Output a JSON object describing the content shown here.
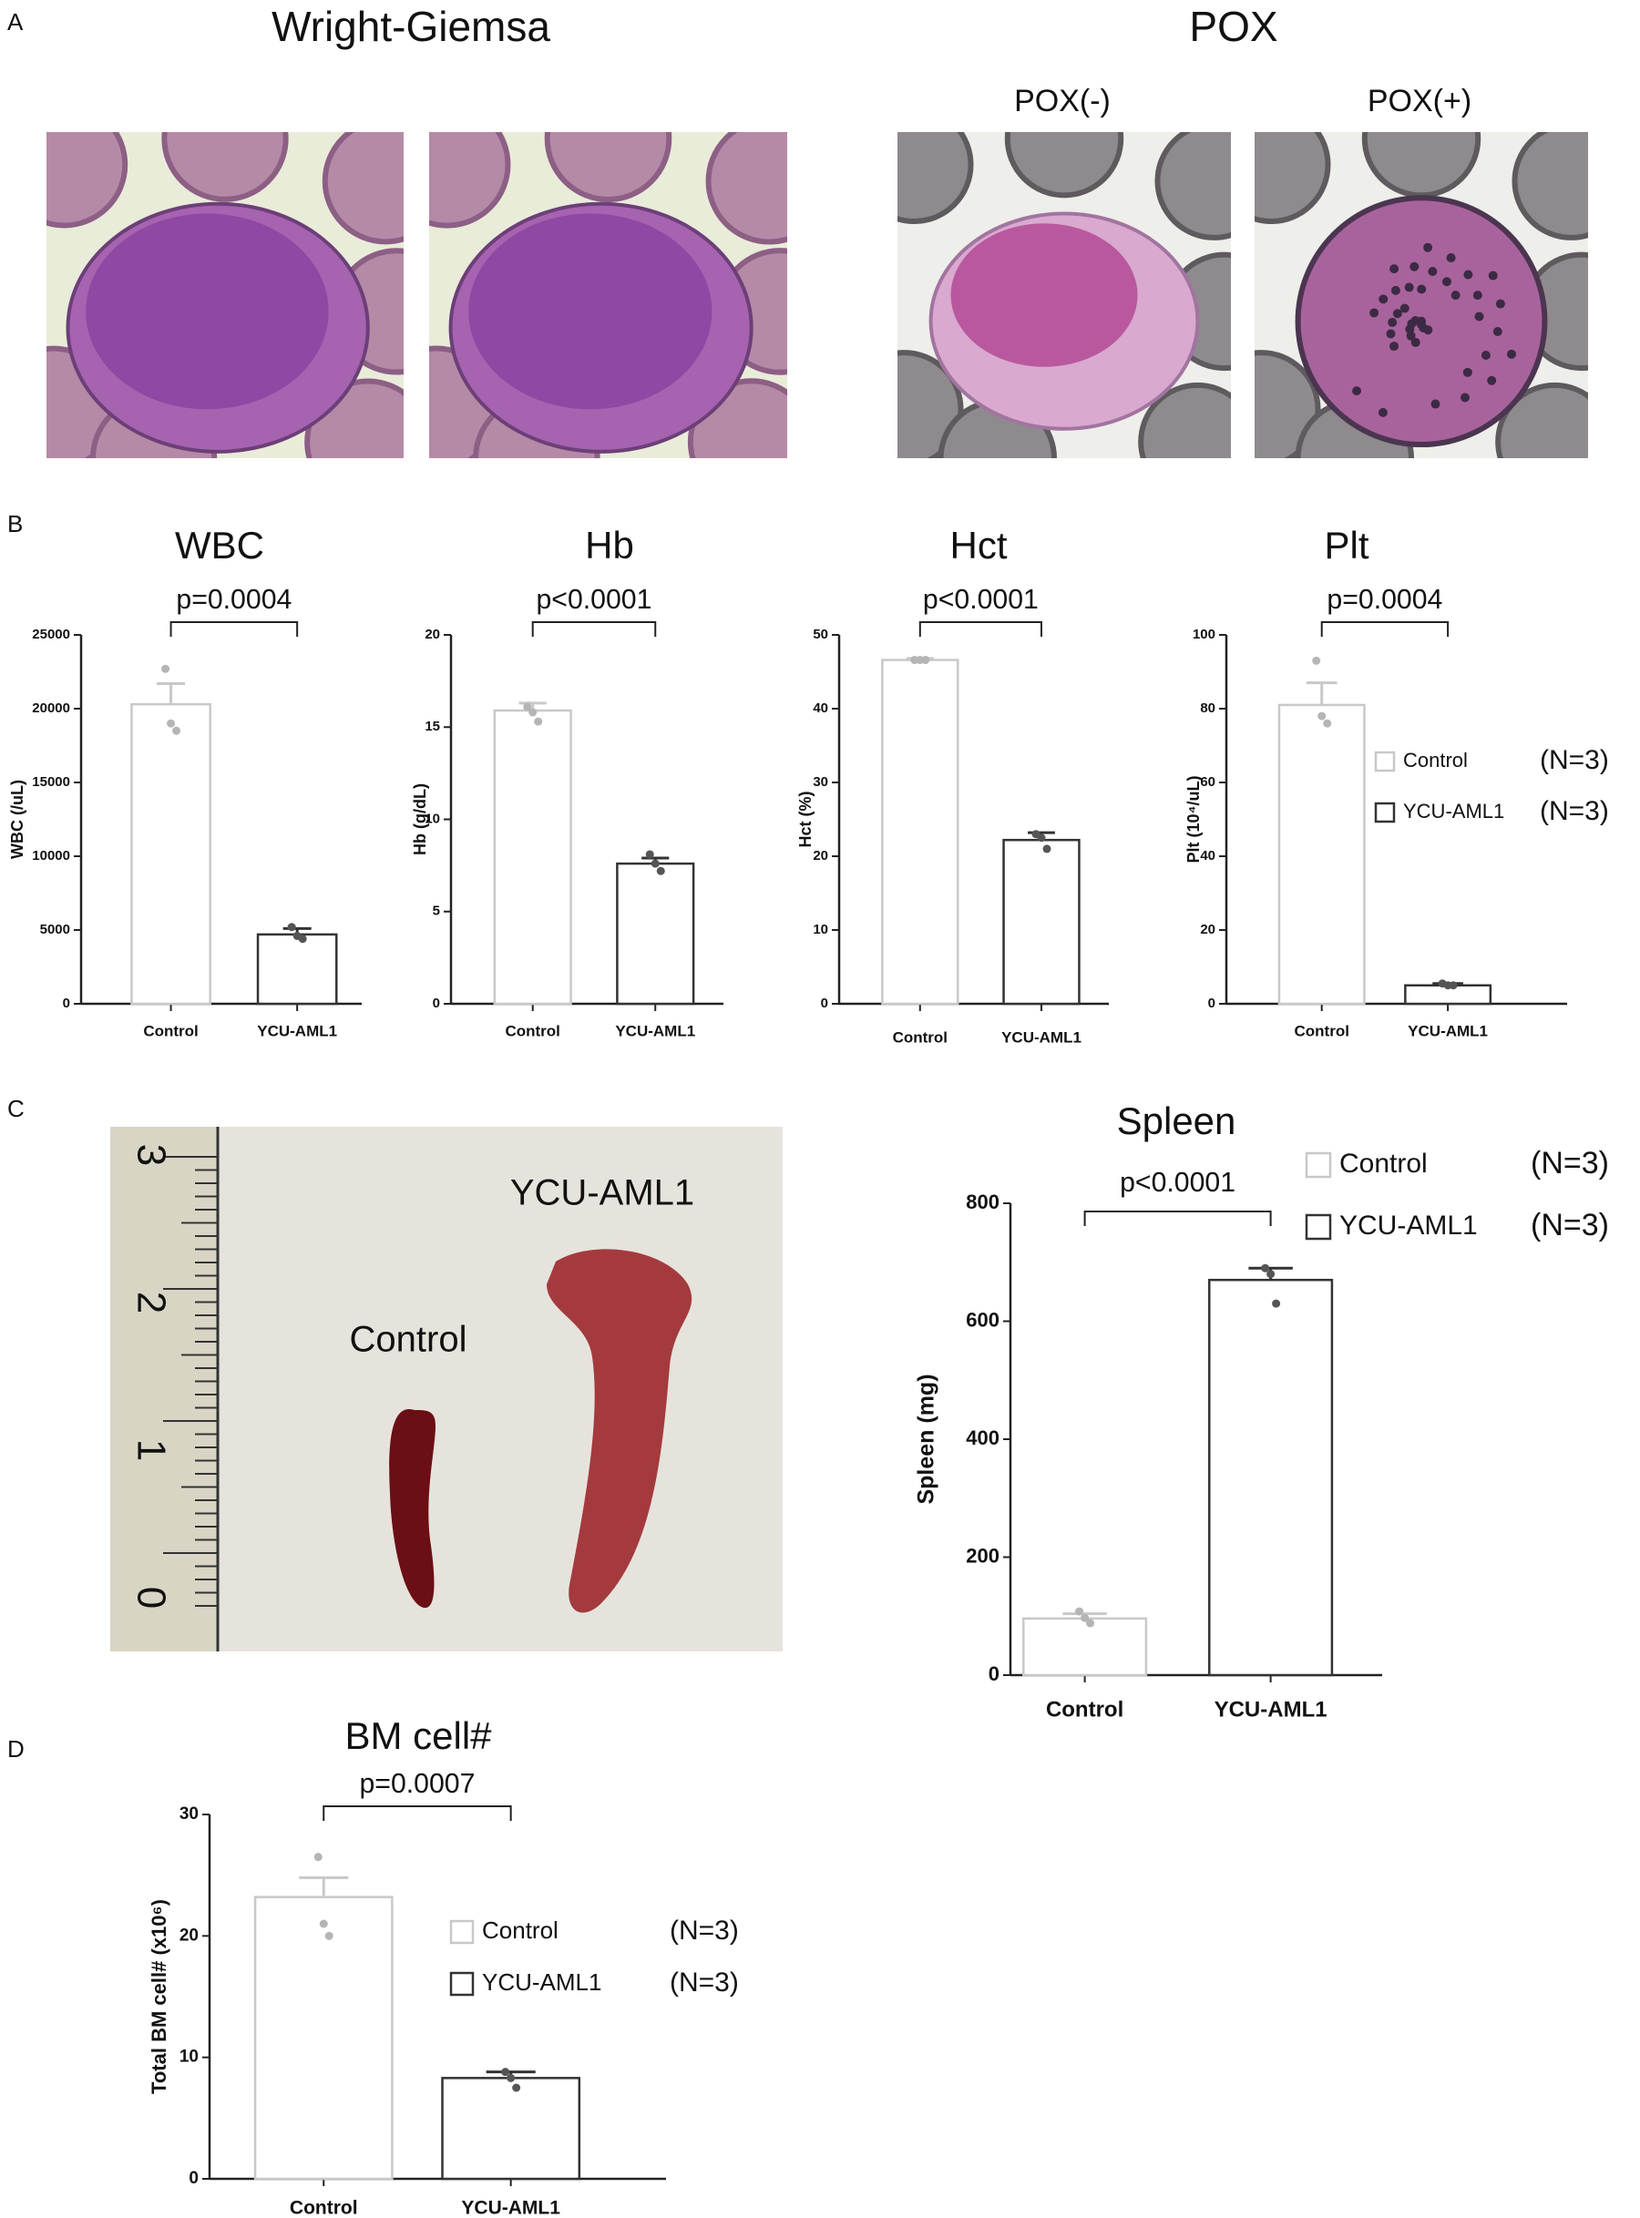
{
  "panels": {
    "a": {
      "label": "A",
      "groups": [
        {
          "title": "Wright-Giemsa"
        },
        {
          "title": "POX",
          "subtitles": [
            "POX(-)",
            "POX(+)"
          ]
        }
      ]
    },
    "b": {
      "label": "B"
    },
    "c": {
      "label": "C",
      "photo": {
        "labels": [
          "YCU-AML1",
          "Control"
        ],
        "ruler": [
          "3",
          "2",
          "1",
          "0"
        ]
      }
    },
    "d": {
      "label": "D"
    }
  },
  "chart_data": [
    {
      "type": "bar",
      "title": "WBC",
      "ylabel": "WBC (/uL)",
      "categories": [
        "Control",
        "YCU-AML1"
      ],
      "values": [
        20300,
        4700
      ],
      "errors": [
        1400,
        400
      ],
      "points": [
        [
          22700,
          19000,
          18500
        ],
        [
          5200,
          4600,
          4400
        ]
      ],
      "colors": [
        "#c8c8c8",
        "#333333"
      ],
      "ylim": [
        0,
        25000
      ],
      "yticks": [
        0,
        5000,
        10000,
        15000,
        20000,
        25000
      ],
      "annotation": "p=0.0004"
    },
    {
      "type": "bar",
      "title": "Hb",
      "ylabel": "Hb (g/dL)",
      "categories": [
        "Control",
        "YCU-AML1"
      ],
      "values": [
        15.9,
        7.6
      ],
      "errors": [
        0.4,
        0.3
      ],
      "points": [
        [
          16.1,
          15.8,
          15.3
        ],
        [
          8.1,
          7.6,
          7.2
        ]
      ],
      "colors": [
        "#c8c8c8",
        "#333333"
      ],
      "ylim": [
        0,
        20
      ],
      "yticks": [
        0,
        5,
        10,
        15,
        20
      ],
      "annotation": "p<0.0001"
    },
    {
      "type": "bar",
      "title": "Hct",
      "ylabel": "Hct (%)",
      "categories": [
        "Control",
        "YCU-AML1"
      ],
      "values": [
        46.6,
        22.2
      ],
      "errors": [
        0.2,
        1.0
      ],
      "points": [
        [
          46.6,
          46.6,
          46.6
        ],
        [
          23,
          22.5,
          21
        ]
      ],
      "colors": [
        "#c8c8c8",
        "#333333"
      ],
      "ylim": [
        0,
        50
      ],
      "yticks": [
        0,
        10,
        20,
        30,
        40,
        50
      ],
      "annotation": "p<0.0001"
    },
    {
      "type": "bar",
      "title": "Plt",
      "ylabel": "Plt (10⁴/uL)",
      "categories": [
        "Control",
        "YCU-AML1"
      ],
      "values": [
        81,
        5
      ],
      "errors": [
        6,
        0.5
      ],
      "points": [
        [
          93,
          78,
          76
        ],
        [
          5.5,
          5,
          5
        ]
      ],
      "colors": [
        "#c8c8c8",
        "#333333"
      ],
      "ylim": [
        0,
        100
      ],
      "yticks": [
        0,
        20,
        40,
        60,
        80,
        100
      ],
      "annotation": "p=0.0004",
      "legend": {
        "entries": [
          {
            "label": "Control",
            "note": "(N=3)"
          },
          {
            "label": "YCU-AML1",
            "note": "(N=3)"
          }
        ]
      }
    },
    {
      "type": "bar",
      "title": "Spleen",
      "ylabel": "Spleen (mg)",
      "categories": [
        "Control",
        "YCU-AML1"
      ],
      "values": [
        96,
        670
      ],
      "errors": [
        8,
        20
      ],
      "points": [
        [
          108,
          97,
          88
        ],
        [
          690,
          680,
          630
        ]
      ],
      "colors": [
        "#c8c8c8",
        "#333333"
      ],
      "ylim": [
        0,
        800
      ],
      "yticks": [
        0,
        200,
        400,
        600,
        800
      ],
      "annotation": "p<0.0001",
      "legend": {
        "entries": [
          {
            "label": "Control",
            "note": "(N=3)"
          },
          {
            "label": "YCU-AML1",
            "note": "(N=3)"
          }
        ]
      }
    },
    {
      "type": "bar",
      "title": "BM cell#",
      "ylabel": "Total BM cell# (x10⁶)",
      "categories": [
        "Control",
        "YCU-AML1"
      ],
      "values": [
        23.2,
        8.3
      ],
      "errors": [
        1.6,
        0.5
      ],
      "points": [
        [
          26.5,
          21,
          20
        ],
        [
          8.8,
          8.3,
          7.5
        ]
      ],
      "colors": [
        "#c8c8c8",
        "#333333"
      ],
      "ylim": [
        0,
        30
      ],
      "yticks": [
        0,
        10,
        20,
        30
      ],
      "annotation": "p=0.0007",
      "legend": {
        "entries": [
          {
            "label": "Control",
            "note": "(N=3)"
          },
          {
            "label": "YCU-AML1",
            "note": "(N=3)"
          }
        ]
      }
    }
  ]
}
